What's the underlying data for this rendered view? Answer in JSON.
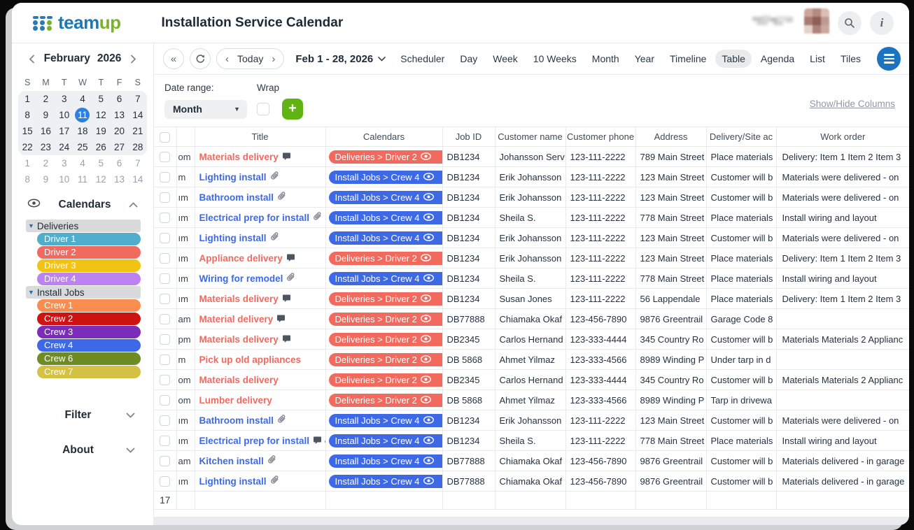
{
  "app": {
    "logo_team": "team",
    "logo_up": "up",
    "title": "Installation Service Calendar"
  },
  "toolbar": {
    "today_label": "Today",
    "range_label": "Feb 1 - 28, 2026",
    "views": [
      "Scheduler",
      "Day",
      "Week",
      "10 Weeks",
      "Month",
      "Year",
      "Timeline",
      "Table",
      "Agenda",
      "List",
      "Tiles"
    ],
    "active_view": "Table"
  },
  "minical": {
    "month": "February",
    "year": "2026",
    "dow": [
      "S",
      "M",
      "T",
      "W",
      "T",
      "F",
      "S"
    ],
    "weeks_current": [
      [
        "1",
        "2",
        "3",
        "4",
        "5",
        "6",
        "7"
      ],
      [
        "8",
        "9",
        "10",
        "11",
        "12",
        "13",
        "14"
      ],
      [
        "15",
        "16",
        "17",
        "18",
        "19",
        "20",
        "21"
      ],
      [
        "22",
        "23",
        "24",
        "25",
        "26",
        "27",
        "28"
      ]
    ],
    "weeks_next": [
      [
        "1",
        "2",
        "3",
        "4",
        "5",
        "6",
        "7"
      ],
      [
        "8",
        "9",
        "10",
        "11",
        "12",
        "13",
        "14"
      ]
    ],
    "today": "11",
    "today_color": "#2d7fe0"
  },
  "sidebar": {
    "calendars_title": "Calendars",
    "groups": [
      {
        "label": "Deliveries",
        "items": [
          {
            "label": "Driver 1",
            "color": "#4FAECB"
          },
          {
            "label": "Driver 2",
            "color": "#F2695E"
          },
          {
            "label": "Driver 3",
            "color": "#F2C313"
          },
          {
            "label": "Driver 4",
            "color": "#BC82F2"
          }
        ]
      },
      {
        "label": "Install Jobs",
        "items": [
          {
            "label": "Crew 1",
            "color": "#F98D50"
          },
          {
            "label": "Crew 2",
            "color": "#CE1413"
          },
          {
            "label": "Crew 3",
            "color": "#7B2CB8"
          },
          {
            "label": "Crew 4",
            "color": "#3D69E6"
          },
          {
            "label": "Crew 6",
            "color": "#6E8B24"
          },
          {
            "label": "Crew 7",
            "color": "#D5C245"
          }
        ]
      }
    ],
    "filter_label": "Filter",
    "about_label": "About"
  },
  "controls": {
    "date_range_label": "Date range:",
    "date_range_value": "Month",
    "wrap_label": "Wrap",
    "add_button": "+",
    "show_hide_columns": "Show/Hide Columns"
  },
  "table": {
    "columns": [
      "",
      "",
      "Title",
      "Calendars",
      "Job ID",
      "Customer name",
      "Customer phone",
      "Address",
      "Delivery/Site ac",
      "Work order"
    ],
    "footer_count": "17",
    "colors": {
      "delivery": "#F2695E",
      "install": "#3D69E6"
    },
    "rows": [
      {
        "time": "om",
        "title": "Materials delivery",
        "type": "delivery",
        "icons": [
          "comment"
        ],
        "calendar": "Deliveries > Driver 2",
        "job_id": "DB1234",
        "customer": "Johansson Serv",
        "phone": "123-111-2222",
        "address": "789 Main Street",
        "access": "Place materials",
        "work_order": "Delivery: Item 1 Item 2 Item 3"
      },
      {
        "time": "m",
        "title": "Lighting install",
        "type": "install",
        "icons": [
          "clip"
        ],
        "calendar": "Install Jobs > Crew 4",
        "job_id": "DB1234",
        "customer": "Erik Johansson",
        "phone": "123-111-2222",
        "address": "123 Main Street",
        "access": "Customer will b",
        "work_order": "Materials were delivered - on"
      },
      {
        "time": "ım",
        "title": "Bathroom install",
        "type": "install",
        "icons": [
          "clip"
        ],
        "calendar": "Install Jobs > Crew 4",
        "job_id": "DB1234",
        "customer": "Erik Johansson",
        "phone": "123-111-2222",
        "address": "123 Main Street",
        "access": "Customer will b",
        "work_order": "Materials were delivered - on"
      },
      {
        "time": "ım",
        "title": "Electrical prep for install",
        "type": "install",
        "icons": [
          "clip"
        ],
        "calendar": "Install Jobs > Crew 4",
        "job_id": "DB1234",
        "customer": "Sheila S.",
        "phone": "123-111-2222",
        "address": "778 Main Street",
        "access": "Place materials",
        "work_order": "Install wiring and layout"
      },
      {
        "time": "ım",
        "title": "Lighting install",
        "type": "install",
        "icons": [
          "clip"
        ],
        "calendar": "Install Jobs > Crew 4",
        "job_id": "DB1234",
        "customer": "Erik Johansson",
        "phone": "123-111-2222",
        "address": "123 Main Street",
        "access": "Customer will b",
        "work_order": "Materials were delivered - on"
      },
      {
        "time": "ım",
        "title": "Appliance delivery",
        "type": "delivery",
        "icons": [
          "comment"
        ],
        "calendar": "Deliveries > Driver 2",
        "job_id": "DB1234",
        "customer": "Erik Johansson",
        "phone": "123-111-2222",
        "address": "123 Main Street",
        "access": "Place materials",
        "work_order": "Delivery: Item 1 Item 2 Item 3"
      },
      {
        "time": "ım",
        "title": "Wiring for remodel",
        "type": "install",
        "icons": [
          "clip"
        ],
        "calendar": "Install Jobs > Crew 4",
        "job_id": "DB1234",
        "customer": "Sheila S.",
        "phone": "123-111-2222",
        "address": "778 Main Street",
        "access": "Place materials",
        "work_order": "Install wiring and layout"
      },
      {
        "time": "ım",
        "title": "Materials delivery",
        "type": "delivery",
        "icons": [
          "comment"
        ],
        "calendar": "Deliveries > Driver 2",
        "job_id": "DB1234",
        "customer": "Susan Jones",
        "phone": "123-111-2222",
        "address": "56 Lappendale",
        "access": "Place materials",
        "work_order": "Delivery: Item 1 Item 2 Item 3"
      },
      {
        "time": "am",
        "title": "Material delivery",
        "type": "delivery",
        "icons": [
          "comment"
        ],
        "calendar": "Deliveries > Driver 2",
        "job_id": "DB77888",
        "customer": "Chiamaka Okaf",
        "phone": "123-456-7890",
        "address": "9876 Greentrail",
        "access": "Garage Code 8",
        "work_order": ""
      },
      {
        "time": "pm",
        "title": "Materials delivery",
        "type": "delivery",
        "icons": [
          "comment"
        ],
        "calendar": "Deliveries > Driver 2",
        "job_id": "DB2345",
        "customer": "Carlos Hernand",
        "phone": "123-333-4444",
        "address": "345 Country Ro",
        "access": "Customer will b",
        "work_order": "Materials Materials 2 Applianc"
      },
      {
        "time": "m",
        "title": "Pick up old appliances",
        "type": "delivery",
        "icons": [],
        "calendar": "Deliveries > Driver 2",
        "job_id": "DB 5868",
        "customer": "Ahmet Yilmaz",
        "phone": "123-333-4566",
        "address": "8989 Winding P",
        "access": "Under tarp in d",
        "work_order": ""
      },
      {
        "time": "om",
        "title": "Materials delivery",
        "type": "delivery",
        "icons": [],
        "calendar": "Deliveries > Driver 2",
        "job_id": "DB2345",
        "customer": "Carlos Hernand",
        "phone": "123-333-4444",
        "address": "345 Country Ro",
        "access": "Customer will b",
        "work_order": "Materials Materials 2 Applianc"
      },
      {
        "time": "om",
        "title": "Lumber delivery",
        "type": "delivery",
        "icons": [],
        "calendar": "Deliveries > Driver 2",
        "job_id": "DB 5868",
        "customer": "Ahmet Yilmaz",
        "phone": "123-333-4566",
        "address": "8989 Winding P",
        "access": "Tarp in drivewa",
        "work_order": ""
      },
      {
        "time": "ım",
        "title": "Bathroom install",
        "type": "install",
        "icons": [
          "clip"
        ],
        "calendar": "Install Jobs > Crew 4",
        "job_id": "DB1234",
        "customer": "Erik Johansson",
        "phone": "123-111-2222",
        "address": "123 Main Street",
        "access": "Customer will b",
        "work_order": "Materials were delivered - on"
      },
      {
        "time": "ım",
        "title": "Electrical prep for install",
        "type": "install",
        "icons": [
          "comment",
          "clip"
        ],
        "calendar": "Install Jobs > Crew 4",
        "job_id": "DB1234",
        "customer": "Sheila S.",
        "phone": "123-111-2222",
        "address": "778 Main Street",
        "access": "Place materials",
        "work_order": "Install wiring and layout"
      },
      {
        "time": "am",
        "title": "Kitchen install",
        "type": "install",
        "icons": [
          "clip"
        ],
        "calendar": "Install Jobs > Crew 4",
        "job_id": "DB77888",
        "customer": "Chiamaka Okaf",
        "phone": "123-456-7890",
        "address": "9876 Greentrail",
        "access": "Customer will b",
        "work_order": "Materials delivered - in garage"
      },
      {
        "time": "ım",
        "title": "Lighting install",
        "type": "install",
        "icons": [
          "clip"
        ],
        "calendar": "Install Jobs > Crew 4",
        "job_id": "DB77888",
        "customer": "Chiamaka Okaf",
        "phone": "123-456-7890",
        "address": "9876 Greentrail",
        "access": "Customer will b",
        "work_order": "Materials delivered - in garage"
      }
    ]
  }
}
